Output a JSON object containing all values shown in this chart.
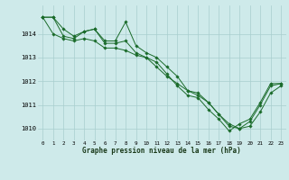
{
  "title": "Graphe pression niveau de la mer (hPa)",
  "bg_color": "#ceeaea",
  "grid_color": "#a8cece",
  "line_color": "#1a6b2a",
  "x_ticks": [
    0,
    1,
    2,
    3,
    4,
    5,
    6,
    7,
    8,
    9,
    10,
    11,
    12,
    13,
    14,
    15,
    16,
    17,
    18,
    19,
    20,
    21,
    22,
    23
  ],
  "ylim": [
    1009.5,
    1015.2
  ],
  "y_ticks": [
    1010,
    1011,
    1012,
    1013,
    1014
  ],
  "series": [
    [
      1014.7,
      1014.7,
      1014.2,
      1013.9,
      1014.1,
      1014.2,
      1013.7,
      1013.7,
      1014.5,
      1013.5,
      1013.2,
      1013.0,
      1012.6,
      1012.2,
      1011.6,
      1011.5,
      1011.1,
      1010.6,
      1010.1,
      1010.0,
      1010.3,
      1011.0,
      1011.8,
      1011.9
    ],
    [
      1014.7,
      1014.7,
      1013.9,
      1013.8,
      1014.1,
      1014.2,
      1013.6,
      1013.6,
      1013.7,
      1013.2,
      1013.0,
      1012.8,
      1012.3,
      1011.8,
      1011.4,
      1011.3,
      1010.8,
      1010.4,
      1009.9,
      1010.2,
      1010.4,
      1011.1,
      1011.9,
      1011.9
    ],
    [
      1014.7,
      1014.0,
      1013.8,
      1013.7,
      1013.8,
      1013.7,
      1013.4,
      1013.4,
      1013.3,
      1013.1,
      1013.0,
      1012.6,
      1012.2,
      1011.9,
      1011.6,
      1011.4,
      1011.1,
      1010.6,
      1010.2,
      1010.0,
      1010.1,
      1010.7,
      1011.5,
      1011.8
    ]
  ]
}
